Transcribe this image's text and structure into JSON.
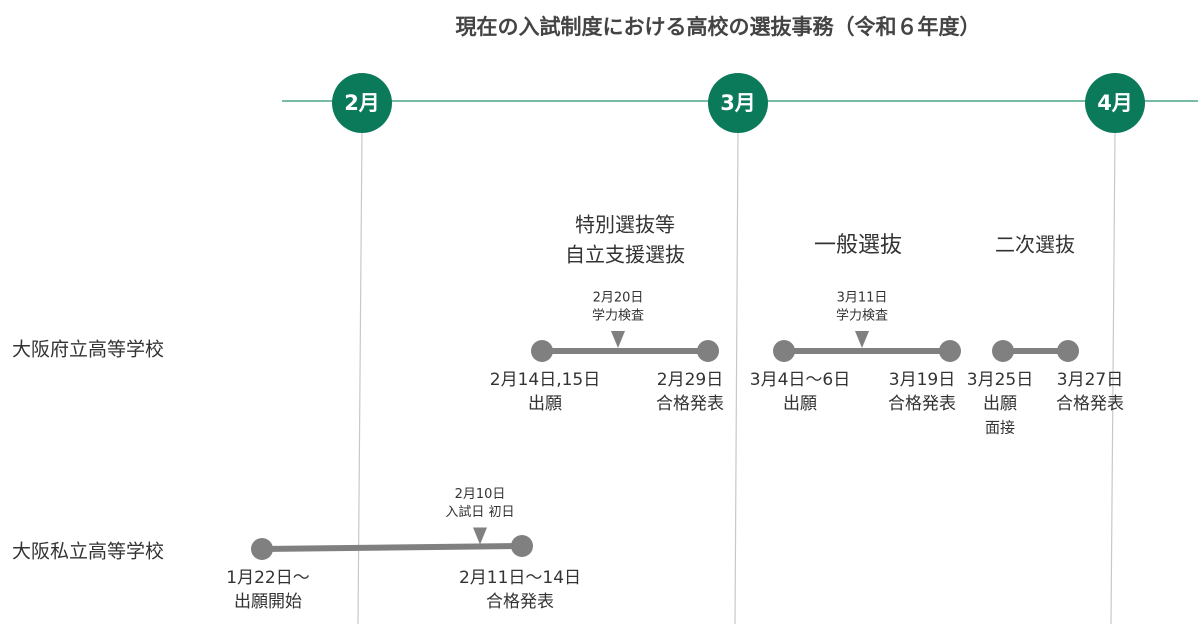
{
  "title": "現在の入試制度における高校の選抜事務（令和６年度）",
  "months": [
    "2月",
    "3月",
    "4月"
  ],
  "rows": [
    {
      "label": "大阪府立高等学校",
      "phases": [
        {
          "name": [
            "特別選抜等",
            "自立支援選抜"
          ],
          "check": [
            "2月20日",
            "学力検査"
          ],
          "start": [
            "2月14日,15日",
            "出願"
          ],
          "end": [
            "2月29日",
            "合格発表"
          ]
        },
        {
          "name": [
            "一般選抜"
          ],
          "check": [
            "3月11日",
            "学力検査"
          ],
          "start": [
            "3月4日～6日",
            "出願"
          ],
          "end": [
            "3月19日",
            "合格発表"
          ]
        },
        {
          "name": [
            "二次選抜"
          ],
          "start": [
            "3月25日",
            "出願",
            "面接"
          ],
          "end": [
            "3月27日",
            "合格発表"
          ]
        }
      ]
    },
    {
      "label": "大阪私立高等学校",
      "phases": [
        {
          "check": [
            "2月10日",
            "入試日 初日"
          ],
          "start": [
            "1月22日～",
            "出願開始"
          ],
          "end": [
            "2月11日～14日",
            "合格発表"
          ]
        }
      ]
    }
  ]
}
